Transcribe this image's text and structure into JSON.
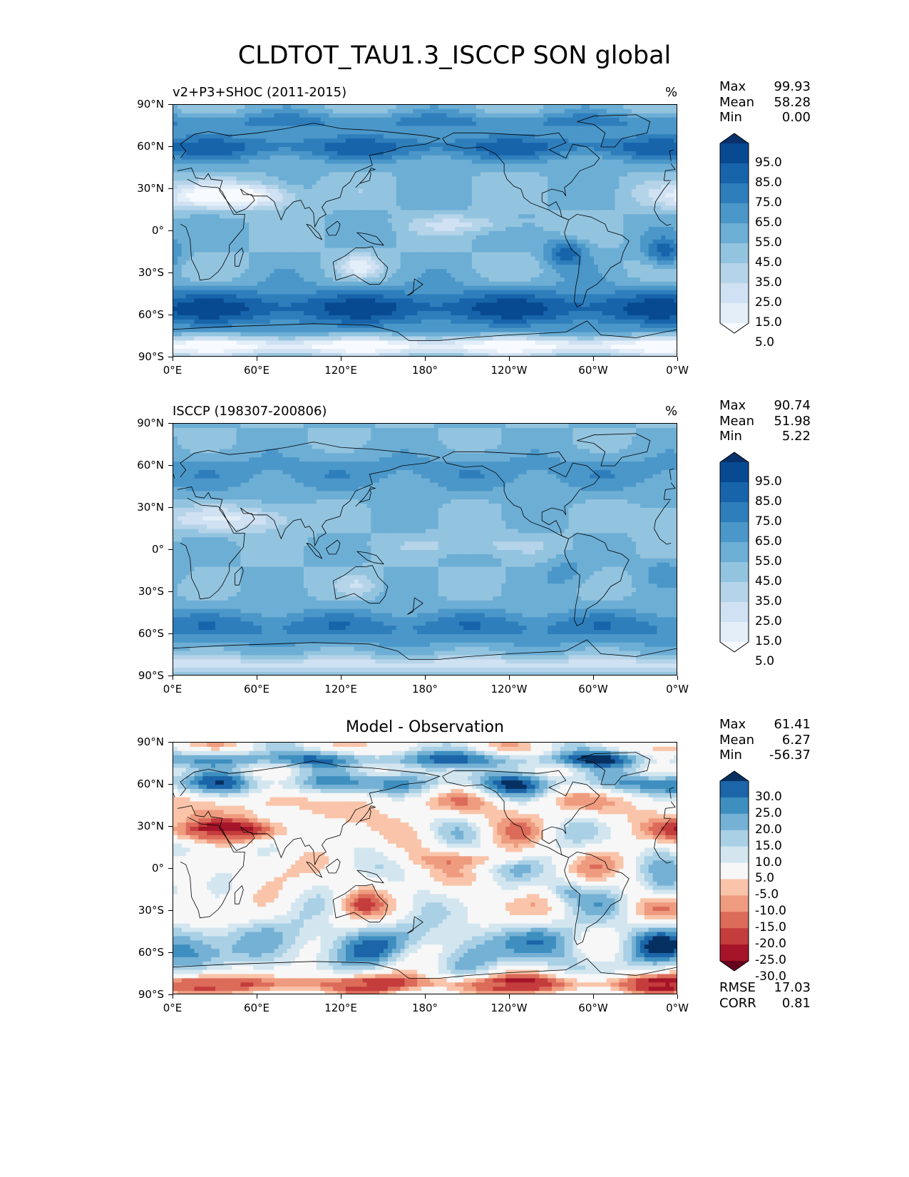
{
  "title": "CLDTOT_TAU1.3_ISCCP SON global",
  "panels": [
    {
      "id": "test",
      "label": "v2+P3+SHOC (2011-2015)",
      "units": "%",
      "stats": {
        "max": "99.93",
        "mean": "58.28",
        "min": "0.00"
      },
      "colorbar": {
        "labels": [
          "95.0",
          "85.0",
          "75.0",
          "65.0",
          "55.0",
          "45.0",
          "35.0",
          "25.0",
          "15.0",
          "5.0"
        ],
        "colors": [
          "#f7fbff",
          "#e3eef9",
          "#cfe1f2",
          "#b5d4e9",
          "#93c4df",
          "#6daed5",
          "#4b97c9",
          "#2f7ebc",
          "#1764ab",
          "#084a91",
          "#08306b"
        ]
      }
    },
    {
      "id": "ref",
      "label": "ISCCP (198307-200806)",
      "units": "%",
      "stats": {
        "max": "90.74",
        "mean": "51.98",
        "min": "5.22"
      },
      "colorbar": {
        "labels": [
          "95.0",
          "85.0",
          "75.0",
          "65.0",
          "55.0",
          "45.0",
          "35.0",
          "25.0",
          "15.0",
          "5.0"
        ],
        "colors": [
          "#f7fbff",
          "#e3eef9",
          "#cfe1f2",
          "#b5d4e9",
          "#93c4df",
          "#6daed5",
          "#4b97c9",
          "#2f7ebc",
          "#1764ab",
          "#084a91",
          "#08306b"
        ]
      }
    },
    {
      "id": "diff",
      "label": "Model - Observation",
      "stats": {
        "max": "61.41",
        "mean": "6.27",
        "min": "-56.37"
      },
      "extra_stats": {
        "rmse": "17.03",
        "corr": "0.81"
      },
      "colorbar": {
        "labels": [
          "30.0",
          "25.0",
          "20.0",
          "15.0",
          "10.0",
          "5.0",
          "-5.0",
          "-10.0",
          "-15.0",
          "-20.0",
          "-25.0",
          "-30.0"
        ],
        "colors": [
          "#67001f",
          "#a51429",
          "#c43c3c",
          "#dc6b5a",
          "#ee9b7f",
          "#f9c4a9",
          "#f7f7f7",
          "#d3e6f0",
          "#a9d0e5",
          "#75b1d4",
          "#3e8fc0",
          "#1b65a8",
          "#053061"
        ]
      }
    }
  ],
  "stat_labels": {
    "max": "Max",
    "mean": "Mean",
    "min": "Min",
    "rmse": "RMSE",
    "corr": "CORR"
  },
  "axes": {
    "lat_labels": [
      "90°N",
      "60°N",
      "30°N",
      "0°",
      "30°S",
      "60°S",
      "90°S"
    ],
    "lon_labels": [
      "0°E",
      "60°E",
      "120°E",
      "180°",
      "120°W",
      "60°W",
      "0°W"
    ],
    "lat_range": [
      -90,
      90
    ],
    "lon_range": [
      0,
      360
    ]
  }
}
